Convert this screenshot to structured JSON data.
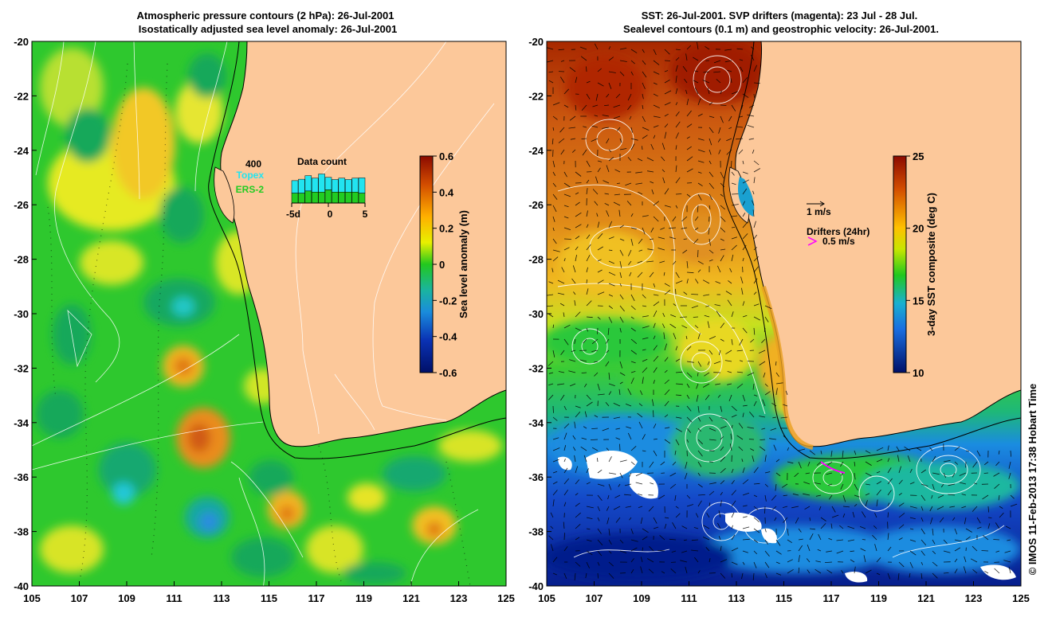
{
  "left_panel": {
    "title_line1": "Atmospheric pressure contours (2 hPa): 26-Jul-2001",
    "title_line2": "Isostatically adjusted sea level anomaly: 26-Jul-2001",
    "x_ticks": [
      "105",
      "107",
      "109",
      "111",
      "113",
      "115",
      "117",
      "119",
      "121",
      "123",
      "125"
    ],
    "y_ticks": [
      "-20",
      "-22",
      "-24",
      "-26",
      "-28",
      "-30",
      "-32",
      "-34",
      "-36",
      "-38",
      "-40"
    ],
    "colorbar": {
      "label": "Sea level anomaly (m)",
      "ticks": [
        "0.6",
        "0.4",
        "0.2",
        "0",
        "-0.2",
        "-0.4",
        "-0.6"
      ]
    },
    "inset": {
      "title": "Data count",
      "ymax_label": "400",
      "legend_topex": "Topex",
      "legend_ers2": "ERS-2",
      "x_labels": [
        "-5d",
        "0",
        "5"
      ],
      "colors": {
        "topex": "#22e4f0",
        "ers2": "#22cc22"
      }
    }
  },
  "right_panel": {
    "title_line1": "SST: 26-Jul-2001. SVP drifters (magenta): 23 Jul - 28 Jul.",
    "title_line2": "Sealevel contours (0.1 m) and geostrophic velocity: 26-Jul-2001.",
    "x_ticks": [
      "105",
      "107",
      "109",
      "111",
      "113",
      "115",
      "117",
      "119",
      "121",
      "123",
      "125"
    ],
    "y_ticks": [
      "-20",
      "-22",
      "-24",
      "-26",
      "-28",
      "-30",
      "-32",
      "-34",
      "-36",
      "-38",
      "-40"
    ],
    "colorbar": {
      "label": "3-day SST composite (deg C)",
      "ticks": [
        "25",
        "20",
        "15",
        "10"
      ]
    },
    "scale_label": "1 m/s",
    "drifters_title": "Drifters (24hr)",
    "drifters_speed": "0.5 m/s",
    "drifter_color": "#ff00ff"
  },
  "credit": "© IMOS 11-Feb-2013 17:38 Hobart Time",
  "colors": {
    "land": "#fcc89a",
    "ocean_green": "#2ec82e",
    "accent_orange": "#ff9a00"
  }
}
